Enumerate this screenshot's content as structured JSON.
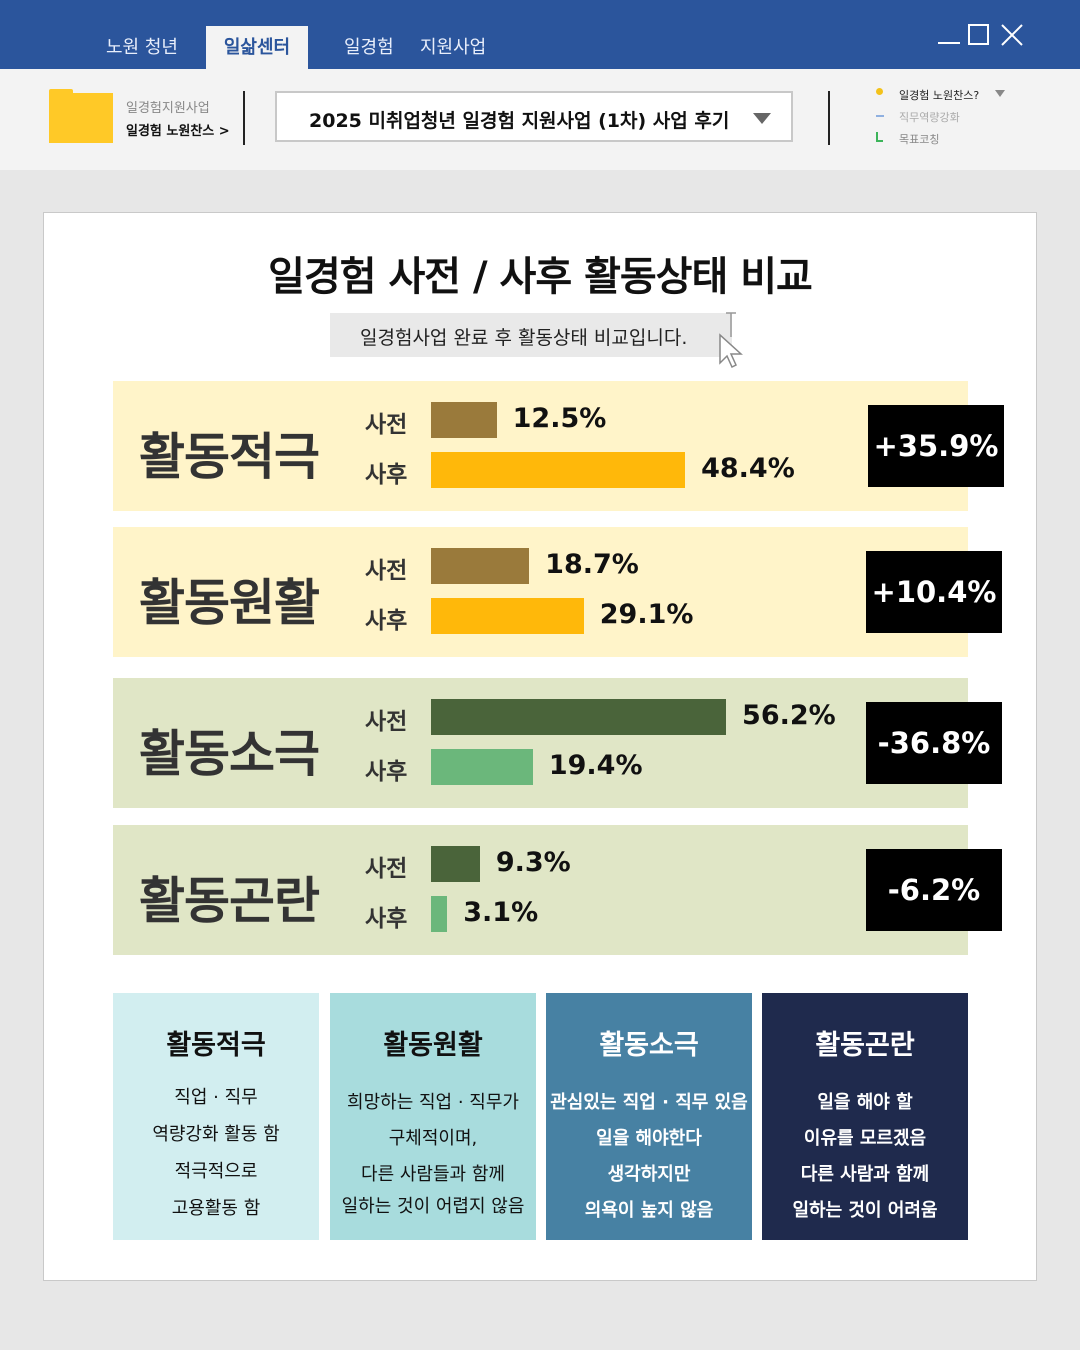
{
  "tabs": [
    "노원 청년",
    "일삶센터",
    "일경험",
    "지원사업"
  ],
  "breadcrumb": {
    "parent": "일경험지원사업",
    "current": "일경험 노원찬스 >"
  },
  "dropdown": {
    "selected": "2025 미취업청년 일경험 지원사업 (1차) 사업 후기"
  },
  "side_links": [
    "일경험 노원찬스?",
    "직무역량강화",
    "목표코칭"
  ],
  "title": "일경험 사전 / 사후 활동상태 비교",
  "subtitle": "일경험사업 완료 후 활동상태 비교입니다.",
  "pre_label": "사전",
  "post_label": "사후",
  "colors": {
    "header": "#2b559c",
    "pos_bg": "#fff4c9",
    "pos_pre": "#9a7a3b",
    "pos_post": "#ffb80a",
    "neg_bg": "#e0e6c6",
    "neg_pre": "#4a643a",
    "neg_post": "#6bb77b"
  },
  "rows": [
    {
      "label": "활동적극",
      "pre": 12.5,
      "post": 48.4,
      "pre_text": "12.5%",
      "post_text": "48.4%",
      "delta": "+35.9%"
    },
    {
      "label": "활동원활",
      "pre": 18.7,
      "post": 29.1,
      "pre_text": "18.7%",
      "post_text": "29.1%",
      "delta": "+10.4%"
    },
    {
      "label": "활동소극",
      "pre": 56.2,
      "post": 19.4,
      "pre_text": "56.2%",
      "post_text": "19.4%",
      "delta": "-36.8%"
    },
    {
      "label": "활동곤란",
      "pre": 9.3,
      "post": 3.1,
      "pre_text": "9.3%",
      "post_text": "3.1%",
      "delta": "-6.2%"
    }
  ],
  "legend": [
    {
      "title": "활동적극",
      "lines": [
        "직업 · 직무",
        "역량강화 활동 함",
        "적극적으로",
        "고용활동 함"
      ],
      "bg": "#d2eef0",
      "fg": "#111111"
    },
    {
      "title": "활동원활",
      "lines": [
        "희망하는 직업 · 직무가",
        "구체적이며,",
        "다른 사람들과 함께",
        "일하는 것이 어렵지 않음"
      ],
      "bg": "#a8dcdd",
      "fg": "#111111"
    },
    {
      "title": "활동소극",
      "lines": [
        "관심있는 직업 · 직무 있음",
        "일을 해야한다",
        "생각하지만",
        "의욕이 높지 않음"
      ],
      "bg": "#4781a3",
      "fg": "#ffffff"
    },
    {
      "title": "활동곤란",
      "lines": [
        "일을 해야 할",
        "이유를 모르겠음",
        "다른 사람과 함께",
        "일하는 것이 어려움"
      ],
      "bg": "#1f2a4d",
      "fg": "#ffffff"
    }
  ]
}
